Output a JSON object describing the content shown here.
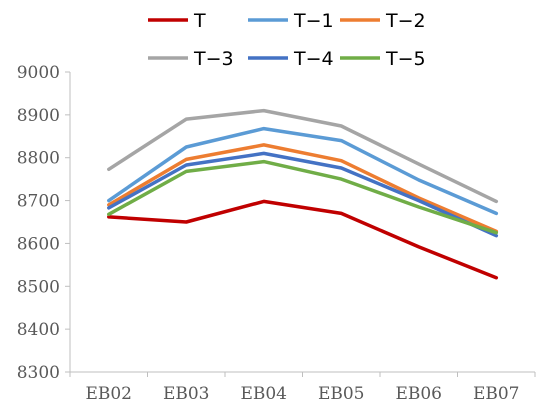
{
  "chart_data": {
    "type": "line",
    "categories": [
      "EB02",
      "EB03",
      "EB04",
      "EB05",
      "EB06",
      "EB07"
    ],
    "ylim": [
      8300,
      9000
    ],
    "yticks": [
      8300,
      8400,
      8500,
      8600,
      8700,
      8800,
      8900,
      9000
    ],
    "grid": false,
    "legend_position": "top",
    "series": [
      {
        "name": "T",
        "color": "#C00000",
        "values": [
          8662,
          8650,
          8698,
          8670,
          8592,
          8520
        ]
      },
      {
        "name": "T−1",
        "color": "#5B9BD5",
        "values": [
          8700,
          8825,
          8868,
          8840,
          8748,
          8670
        ]
      },
      {
        "name": "T−2",
        "color": "#ED7D31",
        "values": [
          8690,
          8796,
          8830,
          8793,
          8706,
          8628
        ]
      },
      {
        "name": "T−3",
        "color": "#A5A5A5",
        "values": [
          8773,
          8890,
          8910,
          8874,
          8785,
          8698
        ]
      },
      {
        "name": "T−4",
        "color": "#4472C4",
        "values": [
          8683,
          8783,
          8810,
          8776,
          8700,
          8618
        ]
      },
      {
        "name": "T−5",
        "color": "#70AD47",
        "values": [
          8668,
          8768,
          8791,
          8750,
          8685,
          8625
        ]
      }
    ]
  }
}
